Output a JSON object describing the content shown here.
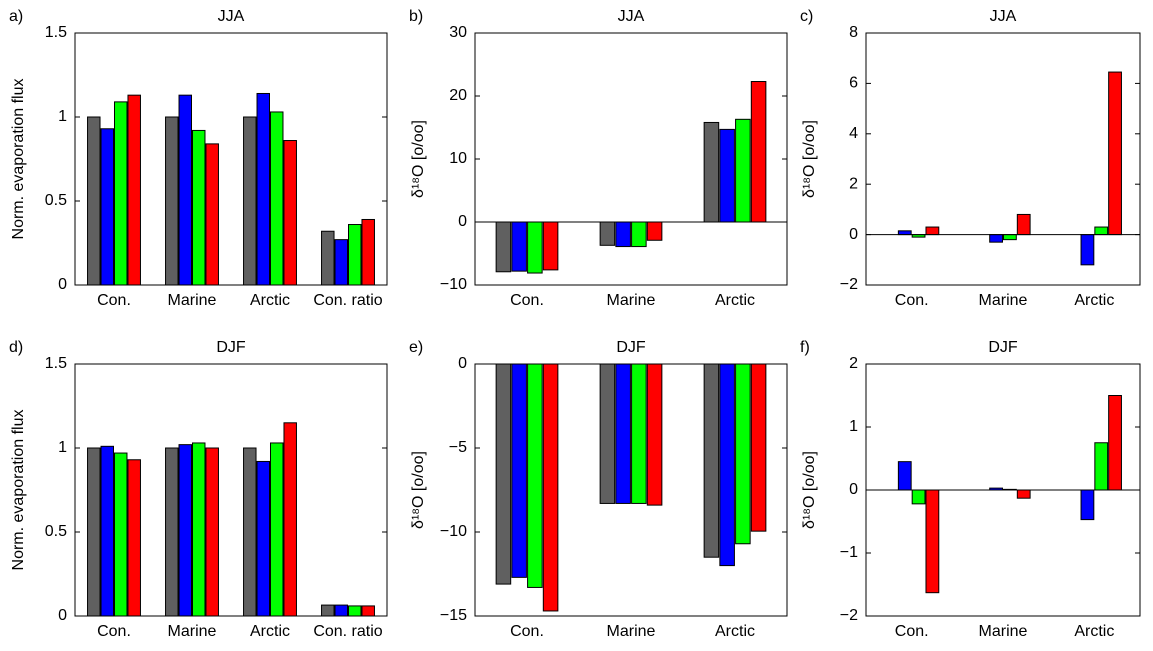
{
  "chart_data": [
    {
      "type": "bar",
      "panel": "a)",
      "title": "JJA",
      "ylabel": "Norm. evaporation flux",
      "categories": [
        "Con.",
        "Marine",
        "Arctic",
        "Con. ratio"
      ],
      "series": [
        {
          "color": "#606060",
          "values": [
            1.0,
            1.0,
            1.0,
            0.32
          ]
        },
        {
          "color": "#0000ff",
          "values": [
            0.93,
            1.13,
            1.14,
            0.27
          ]
        },
        {
          "color": "#00ff00",
          "values": [
            1.09,
            0.92,
            1.03,
            0.36
          ]
        },
        {
          "color": "#ff0000",
          "values": [
            1.13,
            0.84,
            0.86,
            0.39
          ]
        }
      ],
      "ylim": [
        0,
        1.5
      ],
      "yticks": [
        0,
        0.5,
        1,
        1.5
      ],
      "zero_line": false
    },
    {
      "type": "bar",
      "panel": "b)",
      "title": "JJA",
      "ylabel": "δ¹⁸O [o/oo]",
      "categories": [
        "Con.",
        "Marine",
        "Arctic"
      ],
      "series": [
        {
          "color": "#606060",
          "values": [
            -7.9,
            -3.7,
            15.8
          ]
        },
        {
          "color": "#0000ff",
          "values": [
            -7.8,
            -3.9,
            14.7
          ]
        },
        {
          "color": "#00ff00",
          "values": [
            -8.1,
            -3.9,
            16.3
          ]
        },
        {
          "color": "#ff0000",
          "values": [
            -7.6,
            -2.9,
            22.3
          ]
        }
      ],
      "ylim": [
        -10,
        30
      ],
      "yticks": [
        {
          "value": -10,
          "label": "−10"
        },
        0,
        10,
        20,
        30
      ],
      "zero_line": true
    },
    {
      "type": "bar",
      "panel": "c)",
      "title": "JJA",
      "ylabel": "δ¹⁸O [o/oo]",
      "categories": [
        "Con.",
        "Marine",
        "Arctic"
      ],
      "series": [
        {
          "color": "#606060",
          "values": [
            0,
            0,
            0
          ]
        },
        {
          "color": "#0000ff",
          "values": [
            0.15,
            -0.3,
            -1.2
          ]
        },
        {
          "color": "#00ff00",
          "values": [
            -0.1,
            -0.2,
            0.3
          ]
        },
        {
          "color": "#ff0000",
          "values": [
            0.3,
            0.8,
            6.45
          ]
        }
      ],
      "ylim": [
        -2,
        8
      ],
      "yticks": [
        {
          "value": -2,
          "label": "−2"
        },
        0,
        2,
        4,
        6,
        8
      ],
      "zero_line": true
    },
    {
      "type": "bar",
      "panel": "d)",
      "title": "DJF",
      "ylabel": "Norm. evaporation flux",
      "categories": [
        "Con.",
        "Marine",
        "Arctic",
        "Con. ratio"
      ],
      "series": [
        {
          "color": "#606060",
          "values": [
            1.0,
            1.0,
            1.0,
            0.065
          ]
        },
        {
          "color": "#0000ff",
          "values": [
            1.01,
            1.02,
            0.92,
            0.065
          ]
        },
        {
          "color": "#00ff00",
          "values": [
            0.97,
            1.03,
            1.03,
            0.06
          ]
        },
        {
          "color": "#ff0000",
          "values": [
            0.93,
            1.0,
            1.15,
            0.06
          ]
        }
      ],
      "ylim": [
        0,
        1.5
      ],
      "yticks": [
        0,
        0.5,
        1,
        1.5
      ],
      "zero_line": false
    },
    {
      "type": "bar",
      "panel": "e)",
      "title": "DJF",
      "ylabel": "δ¹⁸O [o/oo]",
      "categories": [
        "Con.",
        "Marine",
        "Arctic"
      ],
      "series": [
        {
          "color": "#606060",
          "values": [
            -13.1,
            -8.3,
            -11.5
          ]
        },
        {
          "color": "#0000ff",
          "values": [
            -12.7,
            -8.3,
            -12.0
          ]
        },
        {
          "color": "#00ff00",
          "values": [
            -13.3,
            -8.3,
            -10.7
          ]
        },
        {
          "color": "#ff0000",
          "values": [
            -14.7,
            -8.4,
            -9.95
          ]
        }
      ],
      "ylim": [
        -15,
        0
      ],
      "yticks": [
        {
          "value": -15,
          "label": "−15"
        },
        {
          "value": -10,
          "label": "−10"
        },
        {
          "value": -5,
          "label": "−5"
        },
        0
      ],
      "zero_line": false
    },
    {
      "type": "bar",
      "panel": "f)",
      "title": "DJF",
      "ylabel": "δ¹⁸O [o/oo]",
      "categories": [
        "Con.",
        "Marine",
        "Arctic"
      ],
      "series": [
        {
          "color": "#606060",
          "values": [
            0,
            0,
            0
          ]
        },
        {
          "color": "#0000ff",
          "values": [
            0.45,
            0.03,
            -0.47
          ]
        },
        {
          "color": "#00ff00",
          "values": [
            -0.22,
            0.01,
            0.75
          ]
        },
        {
          "color": "#ff0000",
          "values": [
            -1.63,
            -0.13,
            1.5
          ]
        }
      ],
      "ylim": [
        -2,
        2
      ],
      "yticks": [
        {
          "value": -2,
          "label": "−2"
        },
        {
          "value": -1,
          "label": "−1"
        },
        0,
        1,
        2
      ],
      "zero_line": true
    }
  ]
}
